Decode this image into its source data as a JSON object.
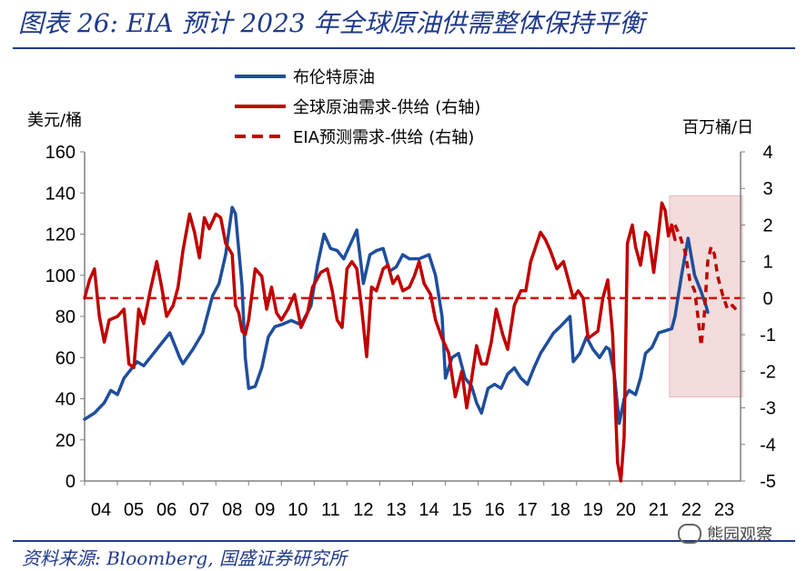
{
  "title": "图表 26:  EIA 预计 2023 年全球原油供需整体保持平衡",
  "source": "资料来源:  Bloomberg, 国盛证券研究所",
  "watermark": "熊园观察",
  "chart_data": {
    "type": "line",
    "left_unit": "美元/桶",
    "right_unit": "百万桶/日",
    "left_axis": {
      "min": 0,
      "max": 160,
      "ticks": [
        "0",
        "20",
        "40",
        "60",
        "80",
        "100",
        "120",
        "140",
        "160"
      ]
    },
    "right_axis": {
      "min": -5,
      "max": 4,
      "ticks": [
        "-5",
        "-4",
        "-3",
        "-2",
        "-1",
        "0",
        "1",
        "2",
        "3",
        "4"
      ]
    },
    "x_axis": {
      "min": 2004,
      "max": 2024,
      "ticks": [
        "04",
        "05",
        "06",
        "07",
        "08",
        "09",
        "10",
        "11",
        "12",
        "13",
        "14",
        "15",
        "16",
        "17",
        "18",
        "19",
        "20",
        "21",
        "22",
        "23"
      ]
    },
    "reference_line": {
      "axis": "right",
      "value": 0
    },
    "forecast_shading": {
      "x_start": 2022.0,
      "x_end": 2024.0,
      "color": "#f2dcdc"
    },
    "series": [
      {
        "name": "布伦特原油",
        "axis": "left",
        "color": "#1f4e9c",
        "style": "solid",
        "points": [
          [
            2004.0,
            30
          ],
          [
            2004.3,
            33
          ],
          [
            2004.6,
            38
          ],
          [
            2004.8,
            44
          ],
          [
            2005.0,
            42
          ],
          [
            2005.2,
            50
          ],
          [
            2005.4,
            54
          ],
          [
            2005.6,
            58
          ],
          [
            2005.8,
            56
          ],
          [
            2006.0,
            60
          ],
          [
            2006.3,
            66
          ],
          [
            2006.6,
            72
          ],
          [
            2006.9,
            60
          ],
          [
            2007.0,
            57
          ],
          [
            2007.3,
            64
          ],
          [
            2007.6,
            72
          ],
          [
            2007.9,
            90
          ],
          [
            2008.1,
            96
          ],
          [
            2008.3,
            110
          ],
          [
            2008.5,
            133
          ],
          [
            2008.6,
            130
          ],
          [
            2008.8,
            95
          ],
          [
            2008.9,
            60
          ],
          [
            2009.0,
            45
          ],
          [
            2009.2,
            46
          ],
          [
            2009.4,
            55
          ],
          [
            2009.6,
            70
          ],
          [
            2009.8,
            75
          ],
          [
            2010.0,
            76
          ],
          [
            2010.3,
            78
          ],
          [
            2010.6,
            76
          ],
          [
            2010.9,
            85
          ],
          [
            2011.1,
            105
          ],
          [
            2011.3,
            120
          ],
          [
            2011.5,
            113
          ],
          [
            2011.7,
            112
          ],
          [
            2011.9,
            108
          ],
          [
            2012.1,
            115
          ],
          [
            2012.3,
            122
          ],
          [
            2012.5,
            96
          ],
          [
            2012.7,
            110
          ],
          [
            2012.9,
            112
          ],
          [
            2013.1,
            113
          ],
          [
            2013.3,
            102
          ],
          [
            2013.5,
            104
          ],
          [
            2013.7,
            110
          ],
          [
            2013.9,
            108
          ],
          [
            2014.2,
            108
          ],
          [
            2014.5,
            110
          ],
          [
            2014.7,
            100
          ],
          [
            2014.9,
            80
          ],
          [
            2015.0,
            50
          ],
          [
            2015.2,
            60
          ],
          [
            2015.4,
            62
          ],
          [
            2015.6,
            50
          ],
          [
            2015.8,
            46
          ],
          [
            2015.95,
            38
          ],
          [
            2016.1,
            33
          ],
          [
            2016.3,
            45
          ],
          [
            2016.5,
            47
          ],
          [
            2016.7,
            45
          ],
          [
            2016.9,
            52
          ],
          [
            2017.1,
            55
          ],
          [
            2017.3,
            50
          ],
          [
            2017.5,
            47
          ],
          [
            2017.7,
            55
          ],
          [
            2017.9,
            62
          ],
          [
            2018.1,
            67
          ],
          [
            2018.3,
            72
          ],
          [
            2018.5,
            75
          ],
          [
            2018.8,
            80
          ],
          [
            2018.9,
            58
          ],
          [
            2019.1,
            62
          ],
          [
            2019.3,
            70
          ],
          [
            2019.5,
            64
          ],
          [
            2019.7,
            60
          ],
          [
            2019.9,
            65
          ],
          [
            2020.0,
            64
          ],
          [
            2020.15,
            52
          ],
          [
            2020.3,
            28
          ],
          [
            2020.45,
            40
          ],
          [
            2020.6,
            44
          ],
          [
            2020.8,
            42
          ],
          [
            2020.95,
            50
          ],
          [
            2021.1,
            62
          ],
          [
            2021.3,
            65
          ],
          [
            2021.5,
            72
          ],
          [
            2021.7,
            73
          ],
          [
            2021.9,
            74
          ],
          [
            2022.0,
            80
          ],
          [
            2022.2,
            100
          ],
          [
            2022.4,
            118
          ],
          [
            2022.6,
            100
          ],
          [
            2022.8,
            92
          ],
          [
            2022.95,
            85
          ],
          [
            2023.0,
            82
          ]
        ]
      },
      {
        "name": "全球原油需求-供给 (右轴)",
        "axis": "right",
        "color": "#c00000",
        "style": "solid",
        "points": [
          [
            2004.0,
            0
          ],
          [
            2004.15,
            0.5
          ],
          [
            2004.3,
            0.8
          ],
          [
            2004.45,
            -0.5
          ],
          [
            2004.6,
            -1.2
          ],
          [
            2004.75,
            -0.6
          ],
          [
            2005.0,
            -0.5
          ],
          [
            2005.2,
            -0.3
          ],
          [
            2005.35,
            -1.8
          ],
          [
            2005.5,
            -1.9
          ],
          [
            2005.65,
            -0.3
          ],
          [
            2005.8,
            -0.7
          ],
          [
            2006.0,
            0.2
          ],
          [
            2006.2,
            1.0
          ],
          [
            2006.35,
            0.3
          ],
          [
            2006.5,
            -0.5
          ],
          [
            2006.7,
            -0.2
          ],
          [
            2006.85,
            0.3
          ],
          [
            2007.0,
            1.3
          ],
          [
            2007.2,
            2.3
          ],
          [
            2007.35,
            1.8
          ],
          [
            2007.5,
            1.1
          ],
          [
            2007.65,
            2.2
          ],
          [
            2007.8,
            1.9
          ],
          [
            2008.0,
            2.3
          ],
          [
            2008.15,
            2.2
          ],
          [
            2008.3,
            1.5
          ],
          [
            2008.5,
            1.2
          ],
          [
            2008.6,
            -0.2
          ],
          [
            2008.7,
            -0.4
          ],
          [
            2008.8,
            -0.9
          ],
          [
            2008.9,
            -1.0
          ],
          [
            2009.0,
            -0.6
          ],
          [
            2009.2,
            0.8
          ],
          [
            2009.4,
            0.6
          ],
          [
            2009.55,
            -0.3
          ],
          [
            2009.7,
            0.3
          ],
          [
            2009.85,
            -0.4
          ],
          [
            2010.0,
            -0.6
          ],
          [
            2010.2,
            -0.3
          ],
          [
            2010.4,
            0.1
          ],
          [
            2010.6,
            -0.8
          ],
          [
            2010.8,
            -0.4
          ],
          [
            2010.95,
            0.3
          ],
          [
            2011.2,
            0.7
          ],
          [
            2011.4,
            0.8
          ],
          [
            2011.55,
            0.2
          ],
          [
            2011.7,
            -0.6
          ],
          [
            2011.85,
            -0.8
          ],
          [
            2012.0,
            0.8
          ],
          [
            2012.15,
            1.0
          ],
          [
            2012.3,
            0.8
          ],
          [
            2012.45,
            -0.3
          ],
          [
            2012.6,
            -1.6
          ],
          [
            2012.75,
            0.3
          ],
          [
            2012.9,
            0.2
          ],
          [
            2013.1,
            0.8
          ],
          [
            2013.25,
            0.9
          ],
          [
            2013.4,
            0.4
          ],
          [
            2013.55,
            0.6
          ],
          [
            2013.7,
            0.2
          ],
          [
            2013.9,
            0.3
          ],
          [
            2014.05,
            0.6
          ],
          [
            2014.2,
            1.0
          ],
          [
            2014.35,
            0.4
          ],
          [
            2014.55,
            0.1
          ],
          [
            2014.7,
            -0.6
          ],
          [
            2014.9,
            -1.1
          ],
          [
            2015.1,
            -1.5
          ],
          [
            2015.3,
            -2.7
          ],
          [
            2015.5,
            -2.0
          ],
          [
            2015.65,
            -3.0
          ],
          [
            2015.8,
            -2.2
          ],
          [
            2015.95,
            -1.3
          ],
          [
            2016.1,
            -1.8
          ],
          [
            2016.25,
            -1.8
          ],
          [
            2016.4,
            -1.2
          ],
          [
            2016.55,
            -0.3
          ],
          [
            2016.75,
            -1.0
          ],
          [
            2016.9,
            -1.4
          ],
          [
            2017.1,
            -0.2
          ],
          [
            2017.3,
            0.2
          ],
          [
            2017.45,
            0.2
          ],
          [
            2017.6,
            1.0
          ],
          [
            2017.75,
            1.4
          ],
          [
            2017.9,
            1.8
          ],
          [
            2018.05,
            1.6
          ],
          [
            2018.2,
            1.3
          ],
          [
            2018.4,
            0.8
          ],
          [
            2018.6,
            1.0
          ],
          [
            2018.75,
            0.5
          ],
          [
            2018.9,
            0.0
          ],
          [
            2019.05,
            0.2
          ],
          [
            2019.2,
            0.0
          ],
          [
            2019.35,
            -1.1
          ],
          [
            2019.5,
            -1.0
          ],
          [
            2019.65,
            -0.9
          ],
          [
            2019.8,
            0.0
          ],
          [
            2019.95,
            0.5
          ],
          [
            2020.1,
            -1.0
          ],
          [
            2020.25,
            -4.5
          ],
          [
            2020.35,
            -5.0
          ],
          [
            2020.45,
            -3.8
          ],
          [
            2020.55,
            1.5
          ],
          [
            2020.7,
            2.0
          ],
          [
            2020.8,
            1.4
          ],
          [
            2020.95,
            0.9
          ],
          [
            2021.1,
            1.8
          ],
          [
            2021.2,
            1.7
          ],
          [
            2021.35,
            0.7
          ],
          [
            2021.5,
            1.8
          ],
          [
            2021.6,
            2.6
          ],
          [
            2021.7,
            2.4
          ],
          [
            2021.8,
            1.7
          ],
          [
            2021.9,
            2.0
          ],
          [
            2022.0,
            1.6
          ]
        ]
      },
      {
        "name": "EIA预测需求-供给 (右轴)",
        "axis": "right",
        "color": "#c00000",
        "style": "dashed",
        "points": [
          [
            2022.0,
            2.0
          ],
          [
            2022.15,
            1.7
          ],
          [
            2022.3,
            1.3
          ],
          [
            2022.45,
            0.5
          ],
          [
            2022.6,
            0.2
          ],
          [
            2022.7,
            -0.5
          ],
          [
            2022.8,
            -1.3
          ],
          [
            2022.9,
            -0.4
          ],
          [
            2023.0,
            1.0
          ],
          [
            2023.1,
            1.4
          ],
          [
            2023.2,
            1.2
          ],
          [
            2023.3,
            0.6
          ],
          [
            2023.45,
            0.1
          ],
          [
            2023.6,
            -0.3
          ],
          [
            2023.75,
            -0.2
          ],
          [
            2023.9,
            -0.35
          ]
        ]
      }
    ]
  }
}
